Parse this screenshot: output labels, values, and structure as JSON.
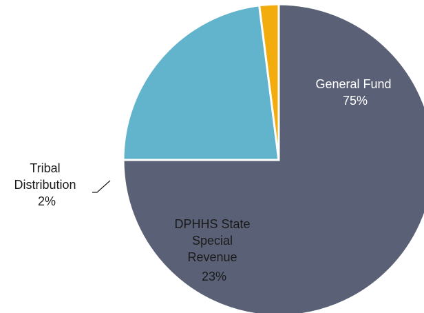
{
  "chart_data": {
    "type": "pie",
    "title": "",
    "legend": "none",
    "slices": [
      {
        "label_lines": [
          "General Fund"
        ],
        "value_label": "75%",
        "value": 75,
        "color": "#5a6075"
      },
      {
        "label_lines": [
          "DPHHS State",
          "Special",
          "Revenue"
        ],
        "value_label": "23%",
        "value": 23,
        "color": "#62b3cc"
      },
      {
        "label_lines": [
          "Tribal",
          "Distribution"
        ],
        "value_label": "2%",
        "value": 2,
        "color": "#f2ac0d"
      }
    ]
  }
}
